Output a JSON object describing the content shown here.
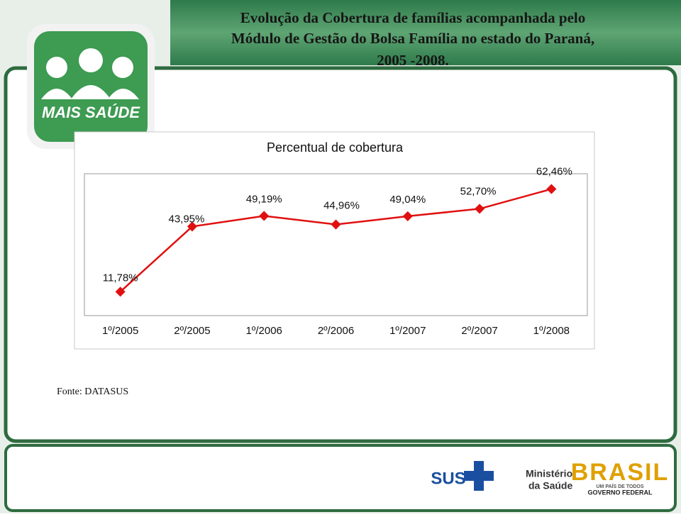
{
  "header": {
    "title_lines": [
      "Evolução da Cobertura de famílias acompanhada pelo",
      "Módulo de Gestão do Bolsa Família no estado do Paraná,",
      "2005 -2008."
    ]
  },
  "chart_data": {
    "type": "line",
    "title": "Percentual de cobertura",
    "categories": [
      "1º/2005",
      "2º/2005",
      "1º/2006",
      "2º/2006",
      "1º/2007",
      "2º/2007",
      "1º/2008"
    ],
    "series": [
      {
        "name": "Percentual de cobertura",
        "color": "#e01010",
        "values": [
          11.78,
          43.95,
          49.19,
          44.96,
          49.04,
          52.7,
          62.46
        ],
        "value_labels": [
          "11,78%",
          "43,95%",
          "49,19%",
          "44,96%",
          "49,04%",
          "52,70%",
          "62,46%"
        ]
      }
    ],
    "ylim": [
      0,
      70
    ],
    "grid": false
  },
  "source": "Fonte: DATASUS",
  "logos": {
    "mais_saude": "MAIS SAÚDE",
    "sus": "SUS",
    "ministerio": [
      "Ministério",
      "da Saúde"
    ],
    "brasil": "BRASIL",
    "brasil_tagline": "UM PAÍS DE TODOS",
    "governo": "GOVERNO FEDERAL"
  }
}
